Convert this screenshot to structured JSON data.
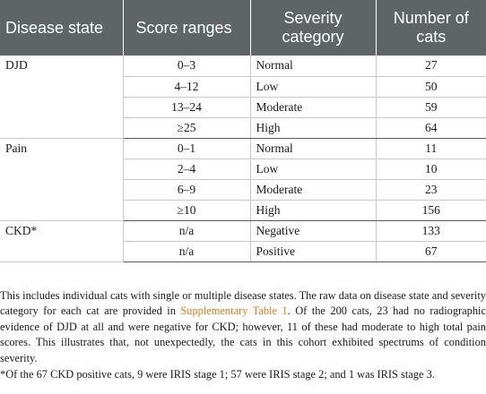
{
  "table": {
    "headers": [
      "Disease state",
      "Score ranges",
      "Severity category",
      "Number of cats"
    ],
    "groups": [
      {
        "name": "DJD",
        "rows": [
          {
            "range": "0–3",
            "category": "Normal",
            "count": "27"
          },
          {
            "range": "4–12",
            "category": "Low",
            "count": "50"
          },
          {
            "range": "13–24",
            "category": "Moderate",
            "count": "59"
          },
          {
            "range": "≥25",
            "category": "High",
            "count": "64"
          }
        ]
      },
      {
        "name": "Pain",
        "rows": [
          {
            "range": "0–1",
            "category": "Normal",
            "count": "11"
          },
          {
            "range": "2–4",
            "category": "Low",
            "count": "10"
          },
          {
            "range": "6–9",
            "category": "Moderate",
            "count": "23"
          },
          {
            "range": "≥10",
            "category": "High",
            "count": "156"
          }
        ]
      },
      {
        "name": "CKD*",
        "rows": [
          {
            "range": "n/a",
            "category": "Negative",
            "count": "133"
          },
          {
            "range": "n/a",
            "category": "Positive",
            "count": "67"
          }
        ]
      }
    ]
  },
  "notes": {
    "para_before_link": "This includes individual cats with single or multiple disease states. The raw data on disease state and severity category for each cat are provided in ",
    "link_text": "Supplementary Table 1",
    "para_after_link": ". Of the 200 cats, 23 had no radiographic evidence of DJD at all and were negative for CKD; however, 11 of these had moderate to high total pain scores. This illustrates that, not unexpectedly, the cats in this cohort exhibited spectrums of condition severity.",
    "footnote": "*Of the 67 CKD positive cats, 9 were IRIS stage 1; 57 were IRIS stage 2; and 1 was IRIS stage 3.",
    "link_color": "#e07b1a"
  },
  "colors": {
    "header_bg": "#5f6566",
    "header_text": "#ffffff",
    "rule": "#c9c9c9"
  }
}
